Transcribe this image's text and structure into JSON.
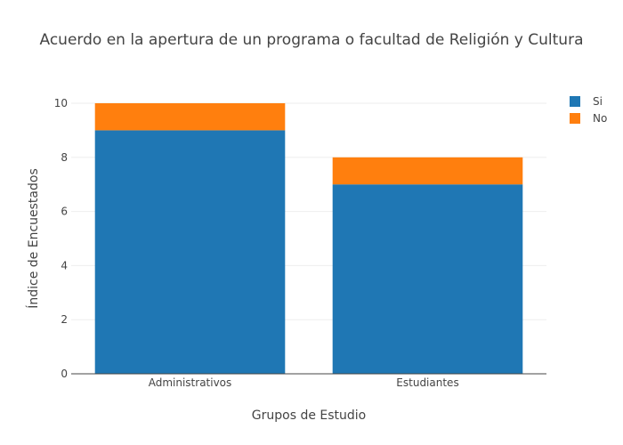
{
  "chart_data": {
    "type": "bar",
    "barmode": "stack",
    "title": "Acuerdo en la apertura de un programa o facultad de Religión y Cultura",
    "xlabel": "Grupos de Estudio",
    "ylabel": "Índice de Encuestados",
    "categories": [
      "Administrativos",
      "Estudiantes"
    ],
    "series": [
      {
        "name": "Si",
        "values": [
          9,
          7
        ],
        "color": "#1f77b4"
      },
      {
        "name": "No",
        "values": [
          1,
          1
        ],
        "color": "#ff7f0e"
      }
    ],
    "ylim": [
      0,
      10
    ],
    "yticks": [
      0,
      2,
      4,
      6,
      8,
      10
    ],
    "grid": true,
    "legend_position": "top-right"
  }
}
